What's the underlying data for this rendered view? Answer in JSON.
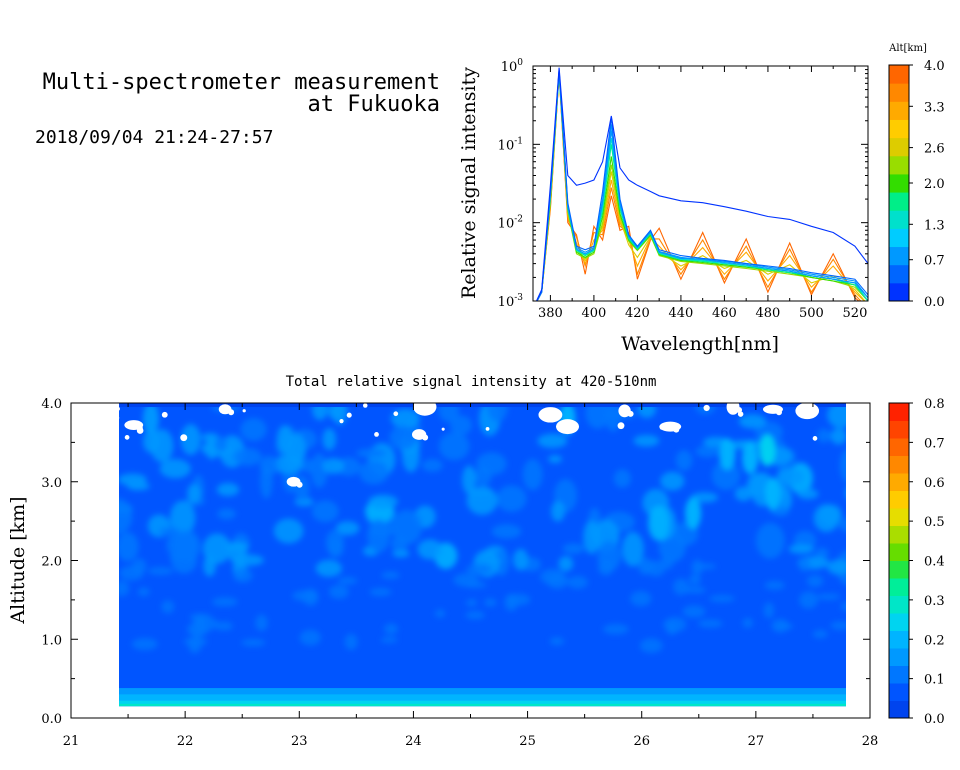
{
  "header": {
    "title_line1": "Multi-spectrometer measurement",
    "title_line2": "at Fukuoka",
    "date_range": "2018/09/04 21:24-27:57"
  },
  "colors": {
    "altitude_scale": [
      "#0033ff",
      "#0066ff",
      "#0099ff",
      "#00ccff",
      "#00e0cc",
      "#00ee88",
      "#33dd00",
      "#99dd00",
      "#ddcc00",
      "#ffcc00",
      "#ffaa00",
      "#ff8800",
      "#ff6600"
    ],
    "intensity_scale": [
      "#0044ee",
      "#0055ff",
      "#0077ff",
      "#0099ff",
      "#00b4ff",
      "#00d4f0",
      "#00e6c8",
      "#00ee99",
      "#22e644",
      "#66dd00",
      "#aadd00",
      "#e6dd00",
      "#ffcc00",
      "#ffaa00",
      "#ff8800",
      "#ff6600",
      "#ff4400",
      "#ff2200"
    ]
  },
  "chart_data": [
    {
      "type": "line",
      "xlabel": "Wavelength[nm]",
      "ylabel": "Relative signal intensity",
      "xlim": [
        372,
        526
      ],
      "ylim": [
        0.001,
        1
      ],
      "yscale": "log",
      "x_ticks": [
        380,
        400,
        420,
        440,
        460,
        480,
        500,
        520
      ],
      "y_ticks": [
        {
          "value": 0.001,
          "base": "10",
          "exp": "-3"
        },
        {
          "value": 0.01,
          "base": "10",
          "exp": "-2"
        },
        {
          "value": 0.1,
          "base": "10",
          "exp": "-1"
        },
        {
          "value": 1,
          "base": "10",
          "exp": "0"
        }
      ],
      "colorbar": {
        "title": "Alt[km]",
        "labels": [
          "0.0",
          "0.7",
          "1.3",
          "2.0",
          "2.6",
          "3.3",
          "4.0"
        ],
        "range": [
          0,
          4
        ]
      },
      "x": [
        372,
        376,
        380,
        384,
        388,
        392,
        396,
        400,
        404,
        408,
        412,
        416,
        420,
        426,
        430,
        440,
        450,
        460,
        470,
        480,
        490,
        500,
        510,
        520,
        526
      ],
      "series": [
        {
          "alt": 0.0,
          "values": [
            0.0008,
            0.0014,
            0.03,
            0.95,
            0.04,
            0.03,
            0.032,
            0.035,
            0.06,
            0.23,
            0.05,
            0.035,
            0.03,
            0.025,
            0.022,
            0.019,
            0.018,
            0.016,
            0.014,
            0.012,
            0.011,
            0.009,
            0.0075,
            0.005,
            0.003
          ]
        },
        {
          "alt": 0.2,
          "values": [
            0.0008,
            0.0013,
            0.025,
            0.9,
            0.018,
            0.005,
            0.0045,
            0.005,
            0.025,
            0.22,
            0.02,
            0.007,
            0.005,
            0.008,
            0.0045,
            0.0038,
            0.0035,
            0.0033,
            0.003,
            0.0028,
            0.0026,
            0.0023,
            0.0021,
            0.0019,
            0.0012
          ]
        },
        {
          "alt": 0.5,
          "values": [
            0.0008,
            0.0013,
            0.024,
            0.88,
            0.017,
            0.0048,
            0.0042,
            0.0048,
            0.02,
            0.18,
            0.018,
            0.0068,
            0.0049,
            0.0078,
            0.0043,
            0.0036,
            0.0034,
            0.0032,
            0.003,
            0.0027,
            0.0025,
            0.0022,
            0.002,
            0.0018,
            0.0011
          ]
        },
        {
          "alt": 0.8,
          "values": [
            0.0008,
            0.0013,
            0.023,
            0.86,
            0.016,
            0.0046,
            0.004,
            0.0046,
            0.018,
            0.15,
            0.017,
            0.0066,
            0.0048,
            0.0076,
            0.0042,
            0.0035,
            0.0034,
            0.0031,
            0.0029,
            0.0026,
            0.0024,
            0.0021,
            0.0019,
            0.0017,
            0.0011
          ]
        },
        {
          "alt": 1.2,
          "values": [
            0.0008,
            0.0013,
            0.022,
            0.85,
            0.016,
            0.0045,
            0.0039,
            0.0045,
            0.016,
            0.12,
            0.016,
            0.0064,
            0.0047,
            0.0074,
            0.0041,
            0.0034,
            0.0033,
            0.003,
            0.0028,
            0.0026,
            0.0024,
            0.0021,
            0.0019,
            0.0017,
            0.001
          ]
        },
        {
          "alt": 1.6,
          "values": [
            0.0008,
            0.0013,
            0.021,
            0.84,
            0.015,
            0.0044,
            0.0038,
            0.0044,
            0.014,
            0.1,
            0.015,
            0.0062,
            0.0046,
            0.0072,
            0.004,
            0.0034,
            0.0032,
            0.003,
            0.0028,
            0.0025,
            0.0023,
            0.0021,
            0.0019,
            0.0016,
            0.001
          ]
        },
        {
          "alt": 2.0,
          "values": [
            0.0008,
            0.0013,
            0.02,
            0.83,
            0.015,
            0.0042,
            0.0036,
            0.0042,
            0.012,
            0.07,
            0.013,
            0.006,
            0.0045,
            0.007,
            0.0039,
            0.0033,
            0.0031,
            0.0029,
            0.0027,
            0.0025,
            0.0023,
            0.002,
            0.0018,
            0.0016,
            0.001
          ]
        },
        {
          "alt": 2.4,
          "values": [
            0.0008,
            0.0013,
            0.019,
            0.82,
            0.014,
            0.004,
            0.0035,
            0.004,
            0.01,
            0.055,
            0.012,
            0.0058,
            0.0044,
            0.0068,
            0.0038,
            0.0032,
            0.003,
            0.0028,
            0.0026,
            0.0024,
            0.0022,
            0.002,
            0.0018,
            0.0015,
            0.001
          ]
        },
        {
          "alt": 2.8,
          "values": [
            0.0008,
            0.0013,
            0.018,
            0.82,
            0.013,
            0.0045,
            0.0033,
            0.0048,
            0.009,
            0.045,
            0.011,
            0.0052,
            0.0036,
            0.0066,
            0.0042,
            0.0028,
            0.0038,
            0.0026,
            0.0033,
            0.0022,
            0.0029,
            0.0017,
            0.0021,
            0.0014,
            0.0009
          ]
        },
        {
          "alt": 3.2,
          "values": [
            0.0008,
            0.0013,
            0.017,
            0.81,
            0.012,
            0.0055,
            0.003,
            0.006,
            0.008,
            0.035,
            0.01,
            0.006,
            0.0028,
            0.0064,
            0.005,
            0.0025,
            0.0048,
            0.0022,
            0.0042,
            0.0018,
            0.0038,
            0.0015,
            0.0028,
            0.0013,
            0.0009
          ]
        },
        {
          "alt": 3.6,
          "values": [
            0.0008,
            0.0013,
            0.016,
            0.8,
            0.011,
            0.0065,
            0.0028,
            0.0075,
            0.007,
            0.028,
            0.009,
            0.0075,
            0.0022,
            0.0062,
            0.0062,
            0.0022,
            0.006,
            0.0019,
            0.005,
            0.0015,
            0.0046,
            0.0013,
            0.0034,
            0.0012,
            0.0008
          ]
        },
        {
          "alt": 4.0,
          "values": [
            0.0008,
            0.0013,
            0.015,
            0.8,
            0.01,
            0.007,
            0.0022,
            0.009,
            0.006,
            0.022,
            0.008,
            0.009,
            0.0019,
            0.006,
            0.0085,
            0.0019,
            0.0075,
            0.0017,
            0.0062,
            0.0013,
            0.0055,
            0.0012,
            0.004,
            0.0011,
            0.0008
          ]
        }
      ]
    },
    {
      "type": "heatmap",
      "title": "Total relative signal intensity at 420-510nm",
      "xlabel": "",
      "ylabel": "Altitude [km]",
      "xlim": [
        21,
        28
      ],
      "ylim": [
        0,
        4
      ],
      "x_ticks": [
        21,
        22,
        23,
        24,
        25,
        26,
        27,
        28
      ],
      "y_ticks": [
        0.0,
        1.0,
        2.0,
        3.0,
        4.0
      ],
      "y_tick_labels": [
        "0.0",
        "1.0",
        "2.0",
        "3.0",
        "4.0"
      ],
      "data_x_range": [
        21.4,
        27.95
      ],
      "data_y_range": [
        0.15,
        4.0
      ],
      "colorbar": {
        "labels": [
          "0.0",
          "0.1",
          "0.2",
          "0.3",
          "0.4",
          "0.5",
          "0.6",
          "0.7",
          "0.8"
        ],
        "range": [
          0,
          0.8
        ]
      },
      "typical_values": {
        "0.15-0.35km": 0.25,
        "0.35-2.0km": 0.08,
        "2.0-4.0km": 0.13,
        "patchy_max": 0.3
      },
      "missing_data_patches": [
        {
          "x": 21.55,
          "y": 3.72
        },
        {
          "x": 22.35,
          "y": 3.92
        },
        {
          "x": 22.95,
          "y": 3.0
        },
        {
          "x": 24.05,
          "y": 3.6
        },
        {
          "x": 24.1,
          "y": 3.95
        },
        {
          "x": 25.2,
          "y": 3.85
        },
        {
          "x": 25.35,
          "y": 3.7
        },
        {
          "x": 25.85,
          "y": 3.9
        },
        {
          "x": 26.25,
          "y": 3.7
        },
        {
          "x": 26.8,
          "y": 3.95
        },
        {
          "x": 27.15,
          "y": 3.92
        },
        {
          "x": 27.45,
          "y": 3.9
        }
      ]
    }
  ]
}
